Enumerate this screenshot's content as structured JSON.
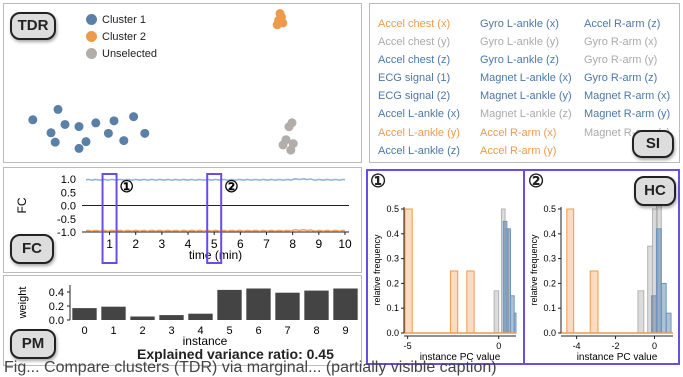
{
  "tdr": {
    "badge": "TDR",
    "legend": [
      {
        "label": "Cluster 1",
        "color": "#5a80a8"
      },
      {
        "label": "Cluster 2",
        "color": "#ee9a4d"
      },
      {
        "label": "Unselected",
        "color": "#b3adaa"
      }
    ],
    "points": [
      {
        "x": 0.3,
        "y": 0.2,
        "group": 1
      },
      {
        "x": 0.12,
        "y": 0.4,
        "group": 1
      },
      {
        "x": 0.35,
        "y": 0.49,
        "group": 1
      },
      {
        "x": 0.84,
        "y": 0.34,
        "group": 1
      },
      {
        "x": 0.45,
        "y": 0.53,
        "group": 1
      },
      {
        "x": 0.57,
        "y": 0.46,
        "group": 1
      },
      {
        "x": 0.7,
        "y": 0.42,
        "group": 1
      },
      {
        "x": 0.25,
        "y": 0.65,
        "group": 1
      },
      {
        "x": 0.66,
        "y": 0.66,
        "group": 1
      },
      {
        "x": 0.92,
        "y": 0.66,
        "group": 1
      },
      {
        "x": 0.28,
        "y": 0.83,
        "group": 1
      },
      {
        "x": 0.5,
        "y": 0.82,
        "group": 1
      },
      {
        "x": 0.77,
        "y": 0.8,
        "group": 1
      },
      {
        "x": 0.45,
        "y": 0.95,
        "group": 1
      },
      {
        "x": 0.5,
        "y": 0.1,
        "group": 2
      },
      {
        "x": 0.4,
        "y": 0.35,
        "group": 2
      },
      {
        "x": 0.6,
        "y": 0.31,
        "group": 2
      },
      {
        "x": 0.45,
        "y": 0.25,
        "group": 2
      },
      {
        "x": 0.55,
        "y": 0.18,
        "group": 2
      },
      {
        "x": 0.55,
        "y": 0.58,
        "group": 0
      },
      {
        "x": 0.6,
        "y": 0.52,
        "group": 0
      },
      {
        "x": 0.5,
        "y": 0.78,
        "group": 0
      },
      {
        "x": 0.62,
        "y": 0.84,
        "group": 0
      },
      {
        "x": 0.45,
        "y": 0.86,
        "group": 0
      },
      {
        "x": 0.58,
        "y": 0.94,
        "group": 0
      }
    ]
  },
  "si": {
    "badge": "SI",
    "columns": [
      [
        {
          "label": "Accel chest (x)",
          "c": "orange"
        },
        {
          "label": "Accel chest (y)",
          "c": "gray"
        },
        {
          "label": "Accel chest (z)",
          "c": "blue"
        },
        {
          "label": "ECG signal (1)",
          "c": "blue"
        },
        {
          "label": "ECG signal (2)",
          "c": "blue"
        },
        {
          "label": "Accel L-ankle (x)",
          "c": "blue"
        },
        {
          "label": "Accel L-ankle (y)",
          "c": "orange"
        },
        {
          "label": "Accel L-ankle (z)",
          "c": "blue"
        }
      ],
      [
        {
          "label": "Gyro L-ankle (x)",
          "c": "blue"
        },
        {
          "label": "Gyro L-ankle (y)",
          "c": "gray"
        },
        {
          "label": "Gyro L-ankle (z)",
          "c": "blue"
        },
        {
          "label": "Magnet L-ankle (x)",
          "c": "blue"
        },
        {
          "label": "Magnet L-ankle (y)",
          "c": "blue"
        },
        {
          "label": "Magnet L-ankle (z)",
          "c": "gray"
        },
        {
          "label": "Accel R-arm (x)",
          "c": "orange"
        },
        {
          "label": "Accel R-arm (y)",
          "c": "orange"
        }
      ],
      [
        {
          "label": "Accel R-arm (z)",
          "c": "blue"
        },
        {
          "label": "Gyro R-arm (x)",
          "c": "gray"
        },
        {
          "label": "Gyro R-arm (y)",
          "c": "gray"
        },
        {
          "label": "Gyro R-arm (z)",
          "c": "blue"
        },
        {
          "label": "Magnet R-arm (x)",
          "c": "blue"
        },
        {
          "label": "Magnet R-arm (y)",
          "c": "blue"
        },
        {
          "label": "Magnet R-arm (z)",
          "c": "gray"
        }
      ]
    ],
    "colors": {
      "orange": "#ee9a4d",
      "gray": "#aaaaaa",
      "blue": "#4a78a8"
    }
  },
  "fc": {
    "badge": "FC",
    "ylabel": "FC",
    "xlabel": "time (min)",
    "yticks": [
      "1.0",
      "0.5",
      "0.0",
      "-0.5",
      "-1.0"
    ],
    "xticks": [
      "1",
      "2",
      "3",
      "4",
      "5",
      "6",
      "7",
      "8",
      "9",
      "10"
    ],
    "blue_level": 0.97,
    "orange_level": -0.95,
    "markers": [
      "①",
      "②"
    ],
    "marker_times": [
      1,
      5
    ]
  },
  "pm": {
    "badge": "PM",
    "ylabel": "weight",
    "xlabel": "instance",
    "yticks": [
      "0.4",
      "0.2",
      "0.0"
    ],
    "ylim": [
      0,
      0.5
    ],
    "categories": [
      "0",
      "1",
      "2",
      "3",
      "4",
      "5",
      "6",
      "7",
      "8",
      "9"
    ],
    "values": [
      0.17,
      0.19,
      0.05,
      0.07,
      0.09,
      0.43,
      0.45,
      0.39,
      0.42,
      0.45
    ],
    "evr": "Explained variance ratio: 0.45",
    "color": "#444444"
  },
  "hc": {
    "badge": "HC",
    "marker_left": "①",
    "marker_right": "②",
    "ylabel": "relative frequency",
    "xlabel": "instance PC value",
    "left": {
      "yticks": [
        "0.5",
        "0.4",
        "0.3",
        "0.2",
        "0.1",
        "0.0"
      ],
      "xticks": [
        "-5",
        "0"
      ],
      "xlim": [
        -5.2,
        0.95
      ],
      "bins": [
        {
          "x0": -5.15,
          "x1": -4.75,
          "h": 0.5,
          "c": "orange"
        },
        {
          "x0": -2.65,
          "x1": -2.25,
          "h": 0.25,
          "c": "orange"
        },
        {
          "x0": -1.75,
          "x1": -1.35,
          "h": 0.25,
          "c": "orange"
        },
        {
          "x0": -0.25,
          "x1": 0.0,
          "h": 0.17,
          "c": "gray"
        },
        {
          "x0": 0.15,
          "x1": 0.35,
          "h": 0.5,
          "c": "gray"
        },
        {
          "x0": 0.35,
          "x1": 0.55,
          "h": 0.42,
          "c": "gray"
        },
        {
          "x0": 0.25,
          "x1": 0.45,
          "h": 0.45,
          "c": "blue"
        },
        {
          "x0": 0.45,
          "x1": 0.65,
          "h": 0.42,
          "c": "blue"
        },
        {
          "x0": 0.65,
          "x1": 0.85,
          "h": 0.15,
          "c": "blue"
        },
        {
          "x0": 0.85,
          "x1": 0.95,
          "h": 0.08,
          "c": "blue"
        }
      ]
    },
    "right": {
      "yticks": [
        "0.5",
        "0.4",
        "0.3",
        "0.2",
        "0.1",
        "0.0"
      ],
      "xticks": [
        "-4",
        "-2",
        "0"
      ],
      "xlim": [
        -4.8,
        0.95
      ],
      "bins": [
        {
          "x0": -4.5,
          "x1": -4.15,
          "h": 0.5,
          "c": "orange"
        },
        {
          "x0": -3.3,
          "x1": -2.9,
          "h": 0.25,
          "c": "orange"
        },
        {
          "x0": -0.85,
          "x1": -0.55,
          "h": 0.17,
          "c": "gray"
        },
        {
          "x0": -0.35,
          "x1": -0.1,
          "h": 0.35,
          "c": "gray"
        },
        {
          "x0": -0.1,
          "x1": 0.15,
          "h": 0.5,
          "c": "gray"
        },
        {
          "x0": 0.1,
          "x1": 0.35,
          "h": 0.55,
          "c": "gray"
        },
        {
          "x0": -0.15,
          "x1": 0.1,
          "h": 0.15,
          "c": "blue"
        },
        {
          "x0": 0.1,
          "x1": 0.35,
          "h": 0.42,
          "c": "blue"
        },
        {
          "x0": 0.35,
          "x1": 0.6,
          "h": 0.2,
          "c": "blue"
        },
        {
          "x0": 0.6,
          "x1": 0.85,
          "h": 0.08,
          "c": "blue"
        }
      ]
    }
  },
  "caption": "Fig... Compare clusters (TDR) via marginal... (partially visible caption)",
  "colors": {
    "accent": "#6b4de6",
    "orange": "#ee9a4d",
    "blue": "#4a78a8",
    "gray": "#b3b3b3"
  }
}
